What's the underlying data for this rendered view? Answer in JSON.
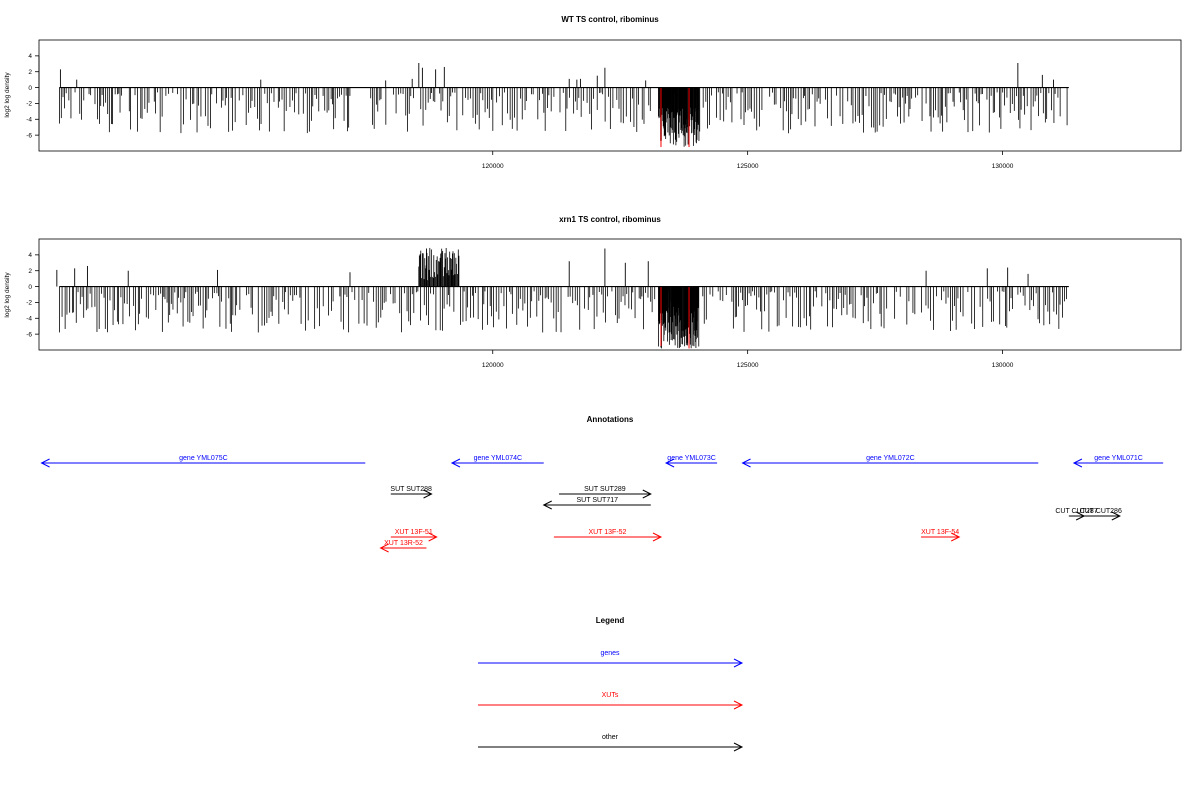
{
  "chart_data": [
    {
      "type": "bar",
      "title": "WT TS control, ribominus",
      "ylabel": "log2 log density",
      "xlabel": "",
      "xlim": [
        111100,
        133500
      ],
      "ylim": [
        -8,
        6
      ],
      "y_ticks": [
        4,
        2,
        0,
        -2,
        -4,
        -6
      ],
      "y_tick_labels": [
        "4",
        "2",
        "0",
        "-2",
        "-4",
        "-6"
      ],
      "x_ticks": [
        120000,
        125000,
        130000
      ],
      "x_tick_labels": [
        "120000",
        "125000",
        "130000"
      ],
      "track_extent": [
        111500,
        131300
      ],
      "gaps": [
        [
          117200,
          117600
        ],
        [
          123200,
          123400
        ]
      ],
      "highlight": [
        [
          123300,
          -7.5
        ],
        [
          123850,
          -7.5
        ]
      ],
      "spikes_up": [
        [
          111520,
          2.3
        ],
        [
          111840,
          1.0
        ],
        [
          115450,
          1.0
        ],
        [
          117900,
          0.9
        ],
        [
          118420,
          1.1
        ],
        [
          118550,
          3.1
        ],
        [
          118620,
          2.5
        ],
        [
          118880,
          2.3
        ],
        [
          119050,
          2.6
        ],
        [
          121500,
          1.1
        ],
        [
          121650,
          1.0
        ],
        [
          121720,
          1.1
        ],
        [
          122050,
          1.5
        ],
        [
          122200,
          2.5
        ],
        [
          123000,
          0.9
        ],
        [
          130300,
          3.1
        ],
        [
          130780,
          1.6
        ],
        [
          131000,
          1.0
        ]
      ],
      "dense_negative": {
        "x_range": [
          123250,
          124050
        ],
        "min": -7.5
      },
      "seed": 17
    },
    {
      "type": "bar",
      "title": "xrn1 TS control, ribominus",
      "ylabel": "log2 log density",
      "xlabel": "",
      "xlim": [
        111100,
        133500
      ],
      "ylim": [
        -8,
        6
      ],
      "y_ticks": [
        4,
        2,
        0,
        -2,
        -4,
        -6
      ],
      "y_tick_labels": [
        "4",
        "2",
        "0",
        "-2",
        "-4",
        "-6"
      ],
      "x_ticks": [
        120000,
        125000,
        130000
      ],
      "x_tick_labels": [
        "120000",
        "125000",
        "130000"
      ],
      "track_extent": [
        111500,
        131300
      ],
      "gaps": [
        [
          123200,
          123400
        ]
      ],
      "highlight": [
        [
          123300,
          -7.5
        ],
        [
          123850,
          -7.8
        ]
      ],
      "spikes_up": [
        [
          111450,
          2.1
        ],
        [
          111800,
          2.3
        ],
        [
          112050,
          2.6
        ],
        [
          112850,
          2.0
        ],
        [
          114600,
          2.1
        ],
        [
          117200,
          1.8
        ],
        [
          118700,
          4.8
        ],
        [
          119000,
          4.3
        ],
        [
          119200,
          3.5
        ],
        [
          121500,
          3.2
        ],
        [
          122200,
          4.8
        ],
        [
          122600,
          3.0
        ],
        [
          123050,
          3.2
        ],
        [
          128500,
          2.0
        ],
        [
          129700,
          2.3
        ],
        [
          130100,
          2.4
        ],
        [
          130500,
          1.6
        ]
      ],
      "dense_positive": {
        "x_range": [
          118550,
          119350
        ],
        "max": 4.9
      },
      "dense_negative": {
        "x_range": [
          123250,
          124050
        ],
        "min": -7.8
      },
      "seed": 41
    }
  ],
  "annotations": {
    "title": "Annotations",
    "xlim": [
      111100,
      133500
    ],
    "items": [
      {
        "label": "gene YML075C",
        "color": "#0000ff",
        "from": 117500,
        "to": 111150,
        "row": 0
      },
      {
        "label": "gene YML074C",
        "color": "#0000ff",
        "from": 121000,
        "to": 119200,
        "row": 0
      },
      {
        "label": "gene YML073C",
        "color": "#0000ff",
        "from": 124400,
        "to": 123400,
        "row": 0
      },
      {
        "label": "gene YML072C",
        "color": "#0000ff",
        "from": 130700,
        "to": 124900,
        "row": 0
      },
      {
        "label": "gene YML071C",
        "color": "#0000ff",
        "from": 133150,
        "to": 131400,
        "row": 0
      },
      {
        "label": "SUT SUT288",
        "color": "#000000",
        "from": 118000,
        "to": 118800,
        "row": 1
      },
      {
        "label": "SUT SUT289",
        "color": "#000000",
        "from": 121300,
        "to": 123100,
        "row": 1
      },
      {
        "label": "SUT SUT717",
        "color": "#000000",
        "from": 123100,
        "to": 121000,
        "row": 2
      },
      {
        "label": "CUT CUT287",
        "color": "#000000",
        "from": 131300,
        "to": 131600,
        "row": 3
      },
      {
        "label": "CUT CUT286",
        "color": "#000000",
        "from": 131550,
        "to": 132300,
        "row": 3
      },
      {
        "label": "XUT 13F-51",
        "color": "#ff0000",
        "from": 118000,
        "to": 118900,
        "row": 4
      },
      {
        "label": "XUT 13F-52",
        "color": "#ff0000",
        "from": 121200,
        "to": 123300,
        "row": 4
      },
      {
        "label": "XUT 13F-54",
        "color": "#ff0000",
        "from": 128400,
        "to": 129150,
        "row": 4
      },
      {
        "label": "XUT 13R-52",
        "color": "#ff0000",
        "from": 118700,
        "to": 117800,
        "row": 5
      }
    ]
  },
  "legend": {
    "title": "Legend",
    "items": [
      {
        "label": "genes",
        "color": "#0000ff"
      },
      {
        "label": "XUTs",
        "color": "#ff0000"
      },
      {
        "label": "other",
        "color": "#000000"
      }
    ]
  }
}
